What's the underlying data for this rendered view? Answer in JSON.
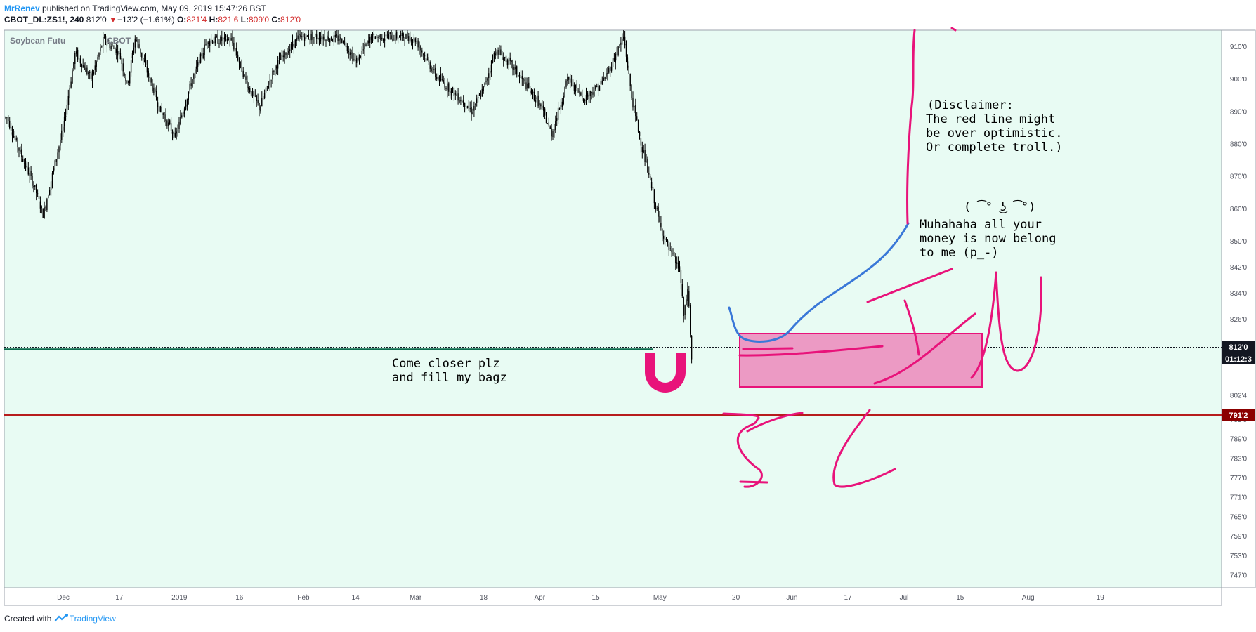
{
  "header": {
    "username": "MrRenev",
    "published_text": " published on TradingView.com, May 09, 2019 15:47:26 BST",
    "symbol": "CBOT_DL:ZS1!, 240",
    "price": "812'0",
    "change_arrow": "▼",
    "change": "−13'2 (−1.61%)",
    "o_label": "O:",
    "o_value": "821'4",
    "h_label": "H:",
    "h_value": "821'6",
    "l_label": "L:",
    "l_value": "809'0",
    "c_label": "C:",
    "c_value": "812'0"
  },
  "chart_title": "Soybean Futu",
  "chart_title_suffix": "CBOT",
  "footer": {
    "created_with": "Created with",
    "brand": "TradingView"
  },
  "colors": {
    "background": "#e8fbf3",
    "candle": "#000000",
    "drawing_pink": "#e8137a",
    "drawing_blue": "#3a78d8",
    "box_fill": "#ec9ac4",
    "support_line": "#b71c1c",
    "flat_line": "#0c6b4d",
    "last_price_label": "#131722"
  },
  "icons": [
    "magnet-icon",
    "tradingview-logo-icon",
    "down-triangle-icon"
  ],
  "chart_data": {
    "type": "candlestick",
    "interval": "240",
    "title": "Soybean Futu",
    "x_tick_labels": [
      "Dec",
      "17",
      "2019",
      "16",
      "Feb",
      "14",
      "Mar",
      "18",
      "Apr",
      "15",
      "May",
      "20",
      "Jun",
      "17",
      "Jul",
      "15",
      "Aug",
      "19"
    ],
    "y_tick_labels": [
      "910'0",
      "900'0",
      "890'0",
      "880'0",
      "870'0",
      "860'0",
      "850'0",
      "842'0",
      "834'0",
      "826'0",
      "818'0",
      "802'4",
      "795'0",
      "789'0",
      "783'0",
      "777'0",
      "771'0",
      "765'0",
      "759'0",
      "753'0",
      "747'0"
    ],
    "ylim": [
      743,
      915
    ],
    "last_price_label": "812'0",
    "countdown_label": "01:12:3",
    "horizontal_line_label": "791'2",
    "horizontal_line_value": 791.25,
    "grid": false,
    "price_path": [
      [
        "Nov 19",
        888
      ],
      [
        "Nov 22",
        878
      ],
      [
        "Nov 26",
        866
      ],
      [
        "Nov 28",
        858
      ],
      [
        "Dec 3",
        885
      ],
      [
        "Dec 6",
        908
      ],
      [
        "Dec 10",
        900
      ],
      [
        "Dec 13",
        912
      ],
      [
        "Dec 17",
        908
      ],
      [
        "Dec 19",
        898
      ],
      [
        "Dec 21",
        913
      ],
      [
        "Dec 27",
        891
      ],
      [
        "Dec 31",
        882
      ],
      [
        "Jan 4",
        899
      ],
      [
        "Jan 8",
        912
      ],
      [
        "Jan 14",
        912
      ],
      [
        "Jan 18",
        898
      ],
      [
        "Jan 21",
        891
      ],
      [
        "Jan 25",
        904
      ],
      [
        "Jan 31",
        913
      ],
      [
        "Feb 6",
        913
      ],
      [
        "Feb 11",
        912
      ],
      [
        "Feb 14",
        905
      ],
      [
        "Feb 18",
        913
      ],
      [
        "Feb 21",
        913
      ],
      [
        "Feb 27",
        913
      ],
      [
        "Mar 1",
        912
      ],
      [
        "Mar 6",
        901
      ],
      [
        "Mar 12",
        894
      ],
      [
        "Mar 15",
        890
      ],
      [
        "Mar 18",
        897
      ],
      [
        "Mar 21",
        909
      ],
      [
        "Mar 25",
        904
      ],
      [
        "Mar 28",
        899
      ],
      [
        "Apr 1",
        892
      ],
      [
        "Apr 4",
        883
      ],
      [
        "Apr 8",
        900
      ],
      [
        "Apr 12",
        894
      ],
      [
        "Apr 16",
        898
      ],
      [
        "Apr 18",
        902
      ],
      [
        "Apr 22",
        913
      ],
      [
        "Apr 24",
        894
      ],
      [
        "Apr 26",
        882
      ],
      [
        "Apr 29",
        866
      ],
      [
        "May 1",
        855
      ],
      [
        "May 3",
        848
      ],
      [
        "May 6",
        841
      ],
      [
        "May 7",
        826
      ],
      [
        "May 8",
        836
      ],
      [
        "May 9",
        812
      ]
    ],
    "annotations": [
      "Come closer plz\nand fill my bagz",
      "( ͡° ͜ʖ ͡°)",
      "Muhahaha all your\nmoney is now belong\nto me (p_-)",
      "(Disclaimer:\nThe red line might\nbe over optimistic.\nOr complete troll.)"
    ]
  }
}
